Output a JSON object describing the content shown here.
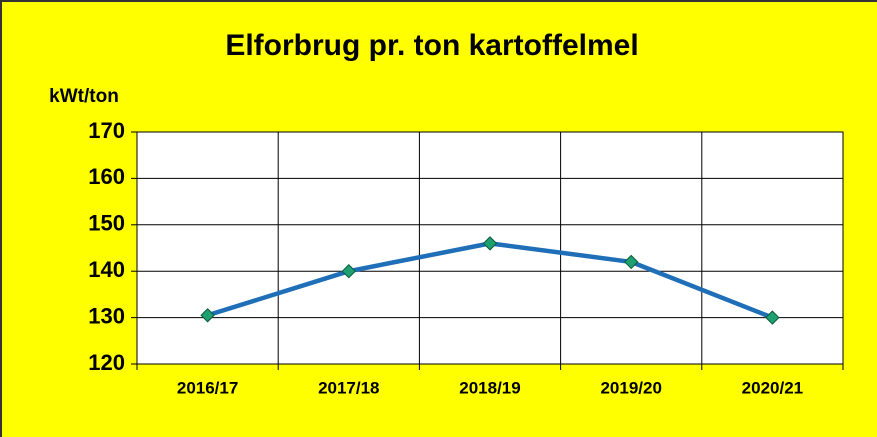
{
  "chart_data": {
    "type": "line",
    "title": "Elforbrug pr. ton kartoffelmel",
    "y_label": "kWt/ton",
    "categories": [
      "2016/17",
      "2017/18",
      "2018/19",
      "2019/20",
      "2020/21"
    ],
    "series": [
      {
        "name": "Elforbrug",
        "color": "#1f6fb8",
        "marker_color": "#1fa070",
        "values": [
          130.5,
          140,
          146,
          142,
          130
        ]
      }
    ],
    "ylim": [
      120,
      170
    ],
    "yticks": [
      120,
      130,
      140,
      150,
      160,
      170
    ],
    "grid": true,
    "legend": false
  }
}
